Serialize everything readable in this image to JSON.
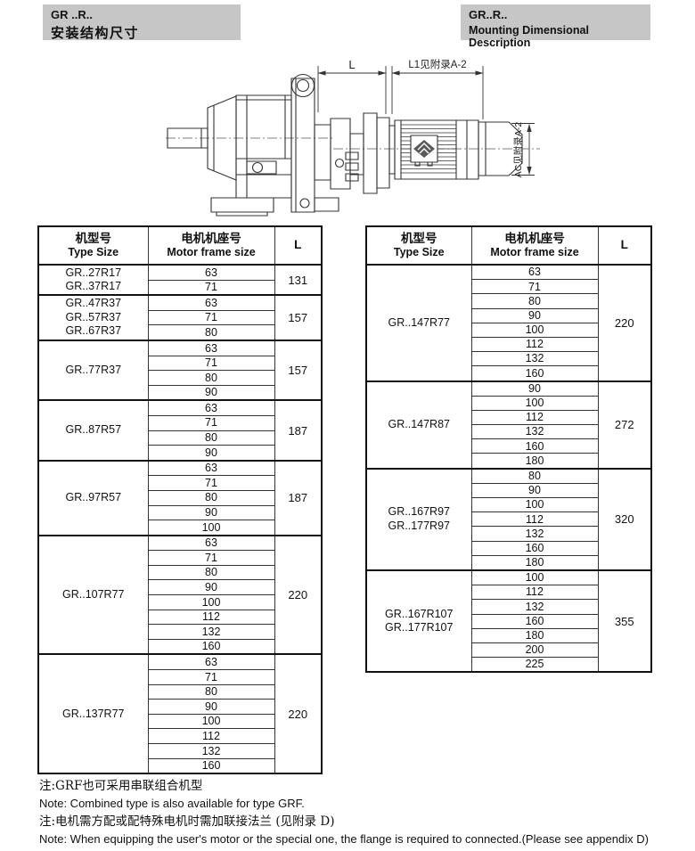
{
  "header_left": {
    "title": "GR ..R..",
    "subtitle": "安装结构尺寸"
  },
  "header_right": {
    "title": "GR..R..",
    "subtitle": "Mounting Dimensional Description"
  },
  "drawing": {
    "dim_l_label": "L",
    "dim_l1_label": "L1见附录A-2",
    "dim_ac_label": "AC见附录A-2"
  },
  "table_headers": {
    "type_cn": "机型号",
    "type_en": "Type Size",
    "frame_cn": "电机机座号",
    "frame_en": "Motor frame size",
    "l_label": "L"
  },
  "left_table": {
    "groups": [
      {
        "types": [
          "GR..27R17",
          "GR..37R17"
        ],
        "frames": [
          "63",
          "71"
        ],
        "l": "131"
      },
      {
        "types": [
          "GR..47R37",
          "GR..57R37",
          "GR..67R37"
        ],
        "frames": [
          "63",
          "71",
          "80"
        ],
        "l": "157"
      },
      {
        "types": [
          "GR..77R37"
        ],
        "frames": [
          "63",
          "71",
          "80",
          "90"
        ],
        "l": "157"
      },
      {
        "types": [
          "GR..87R57"
        ],
        "frames": [
          "63",
          "71",
          "80",
          "90"
        ],
        "l": "187"
      },
      {
        "types": [
          "GR..97R57"
        ],
        "frames": [
          "63",
          "71",
          "80",
          "90",
          "100"
        ],
        "l": "187"
      },
      {
        "types": [
          "GR..107R77"
        ],
        "frames": [
          "63",
          "71",
          "80",
          "90",
          "100",
          "112",
          "132",
          "160"
        ],
        "l": "220"
      },
      {
        "types": [
          "GR..137R77"
        ],
        "frames": [
          "63",
          "71",
          "80",
          "90",
          "100",
          "112",
          "132",
          "160"
        ],
        "l": "220"
      }
    ]
  },
  "right_table": {
    "groups": [
      {
        "types": [
          "GR..147R77"
        ],
        "frames": [
          "63",
          "71",
          "80",
          "90",
          "100",
          "112",
          "132",
          "160"
        ],
        "l": "220"
      },
      {
        "types": [
          "GR..147R87"
        ],
        "frames": [
          "90",
          "100",
          "112",
          "132",
          "160",
          "180"
        ],
        "l": "272"
      },
      {
        "types": [
          "GR..167R97",
          "GR..177R97"
        ],
        "frames": [
          "80",
          "90",
          "100",
          "112",
          "132",
          "160",
          "180"
        ],
        "l": "320"
      },
      {
        "types": [
          "GR..167R107",
          "GR..177R107"
        ],
        "frames": [
          "100",
          "112",
          "132",
          "160",
          "180",
          "200",
          "225"
        ],
        "l": "355"
      }
    ]
  },
  "notes": [
    "注:GRF也可采用串联组合机型",
    "Note: Combined type is also available for type GRF.",
    "注:电机需方配或配特殊电机时需加联接法兰 (见附录 D)",
    "Note: When equipping the user's motor or the special one, the flange is required to connected.(Please see appendix D)"
  ],
  "colors": {
    "header_bg": "#c6c6c6",
    "line": "#333333"
  }
}
